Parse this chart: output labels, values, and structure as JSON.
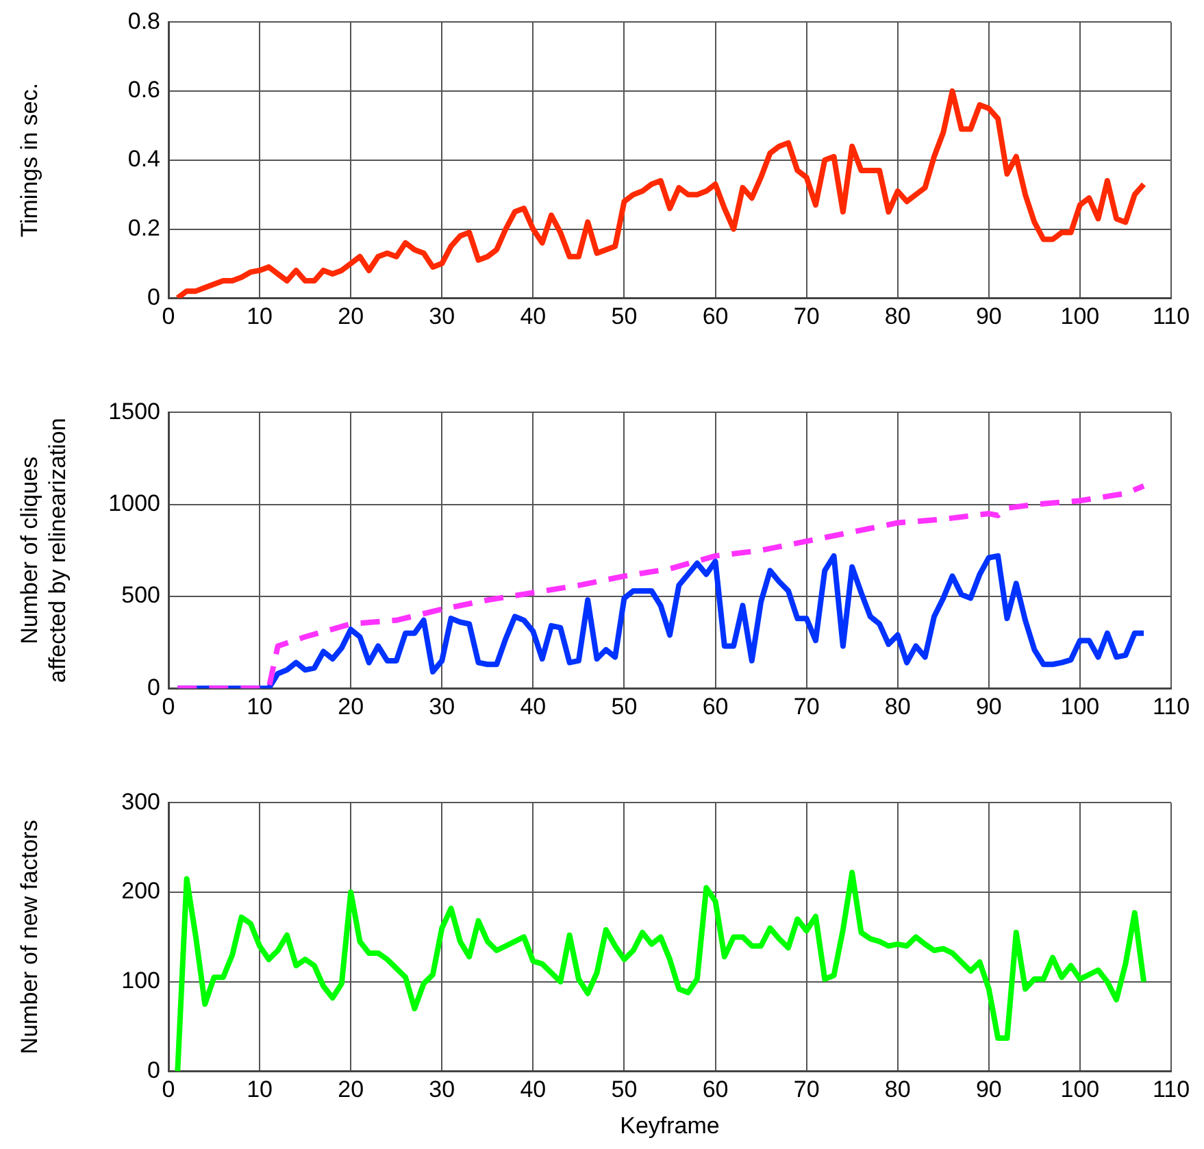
{
  "chart_data": [
    {
      "type": "line",
      "ylabel": "Timings in sec.",
      "xlim": [
        0,
        110
      ],
      "xticks": [
        0,
        10,
        20,
        30,
        40,
        50,
        60,
        70,
        80,
        90,
        100,
        110
      ],
      "ylim": [
        0,
        0.8
      ],
      "yticks": [
        0,
        0.2,
        0.4,
        0.6,
        0.8
      ],
      "grid": true,
      "legend": false,
      "marker": "none",
      "x": [
        1,
        2,
        3,
        4,
        5,
        6,
        7,
        8,
        9,
        10,
        11,
        12,
        13,
        14,
        15,
        16,
        17,
        18,
        19,
        20,
        21,
        22,
        23,
        24,
        25,
        26,
        27,
        28,
        29,
        30,
        31,
        32,
        33,
        34,
        35,
        36,
        37,
        38,
        39,
        40,
        41,
        42,
        43,
        44,
        45,
        46,
        47,
        48,
        49,
        50,
        51,
        52,
        53,
        54,
        55,
        56,
        57,
        58,
        59,
        60,
        61,
        62,
        63,
        64,
        65,
        66,
        67,
        68,
        69,
        70,
        71,
        72,
        73,
        74,
        75,
        76,
        77,
        78,
        79,
        80,
        81,
        82,
        83,
        84,
        85,
        86,
        87,
        88,
        89,
        90,
        91,
        92,
        93,
        94,
        95,
        96,
        97,
        98,
        99,
        100,
        101,
        102,
        103,
        104,
        105,
        106,
        107
      ],
      "series": [
        {
          "color": "#ff2a00",
          "line_style": "solid",
          "values": [
            0,
            0.02,
            0.02,
            0.03,
            0.04,
            0.05,
            0.05,
            0.06,
            0.075,
            0.08,
            0.09,
            0.07,
            0.05,
            0.08,
            0.05,
            0.05,
            0.08,
            0.07,
            0.08,
            0.1,
            0.12,
            0.08,
            0.12,
            0.13,
            0.12,
            0.16,
            0.14,
            0.13,
            0.09,
            0.1,
            0.15,
            0.18,
            0.19,
            0.11,
            0.12,
            0.14,
            0.2,
            0.25,
            0.26,
            0.2,
            0.16,
            0.24,
            0.19,
            0.12,
            0.12,
            0.22,
            0.13,
            0.14,
            0.15,
            0.28,
            0.3,
            0.31,
            0.33,
            0.34,
            0.26,
            0.32,
            0.3,
            0.3,
            0.31,
            0.33,
            0.26,
            0.2,
            0.32,
            0.29,
            0.35,
            0.42,
            0.44,
            0.45,
            0.37,
            0.35,
            0.27,
            0.4,
            0.41,
            0.25,
            0.44,
            0.37,
            0.37,
            0.37,
            0.25,
            0.31,
            0.28,
            0.3,
            0.32,
            0.41,
            0.48,
            0.6,
            0.49,
            0.49,
            0.56,
            0.55,
            0.52,
            0.36,
            0.41,
            0.3,
            0.22,
            0.17,
            0.17,
            0.19,
            0.19,
            0.27,
            0.29,
            0.23,
            0.34,
            0.23,
            0.22,
            0.3,
            0.33
          ]
        }
      ]
    },
    {
      "type": "line",
      "ylabel": "Number of cliques\naffected by relinearization",
      "xlim": [
        0,
        110
      ],
      "xticks": [
        0,
        10,
        20,
        30,
        40,
        50,
        60,
        70,
        80,
        90,
        100,
        110
      ],
      "ylim": [
        0,
        1500
      ],
      "yticks": [
        0,
        500,
        1000,
        1500
      ],
      "grid": true,
      "legend": false,
      "marker": "none",
      "x": [
        1,
        2,
        3,
        4,
        5,
        6,
        7,
        8,
        9,
        10,
        11,
        12,
        13,
        14,
        15,
        16,
        17,
        18,
        19,
        20,
        21,
        22,
        23,
        24,
        25,
        26,
        27,
        28,
        29,
        30,
        31,
        32,
        33,
        34,
        35,
        36,
        37,
        38,
        39,
        40,
        41,
        42,
        43,
        44,
        45,
        46,
        47,
        48,
        49,
        50,
        51,
        52,
        53,
        54,
        55,
        56,
        57,
        58,
        59,
        60,
        61,
        62,
        63,
        64,
        65,
        66,
        67,
        68,
        69,
        70,
        71,
        72,
        73,
        74,
        75,
        76,
        77,
        78,
        79,
        80,
        81,
        82,
        83,
        84,
        85,
        86,
        87,
        88,
        89,
        90,
        91,
        92,
        93,
        94,
        95,
        96,
        97,
        98,
        99,
        100,
        101,
        102,
        103,
        104,
        105,
        106,
        107
      ],
      "series": [
        {
          "color": "#ff33ff",
          "line_style": "dashed",
          "x": [
            1,
            11,
            12,
            15,
            20,
            25,
            30,
            35,
            40,
            45,
            50,
            55,
            60,
            65,
            70,
            75,
            80,
            85,
            90,
            91,
            92,
            95,
            100,
            105,
            107
          ],
          "values": [
            0,
            0,
            230,
            280,
            350,
            370,
            430,
            480,
            520,
            560,
            610,
            650,
            720,
            750,
            800,
            850,
            900,
            920,
            950,
            940,
            980,
            1000,
            1020,
            1060,
            1100
          ]
        },
        {
          "color": "#0033ff",
          "line_style": "solid",
          "values": [
            0,
            0,
            0,
            0,
            0,
            0,
            0,
            0,
            0,
            0,
            0,
            80,
            100,
            140,
            100,
            110,
            200,
            160,
            220,
            320,
            280,
            140,
            230,
            150,
            150,
            300,
            300,
            370,
            90,
            150,
            380,
            360,
            350,
            140,
            130,
            130,
            270,
            390,
            370,
            310,
            160,
            340,
            330,
            140,
            150,
            480,
            160,
            210,
            170,
            490,
            530,
            530,
            530,
            450,
            290,
            560,
            620,
            680,
            620,
            690,
            230,
            230,
            450,
            150,
            470,
            640,
            580,
            530,
            380,
            380,
            260,
            640,
            720,
            230,
            660,
            520,
            390,
            350,
            240,
            290,
            140,
            230,
            170,
            390,
            490,
            610,
            510,
            490,
            620,
            710,
            720,
            380,
            570,
            370,
            210,
            130,
            130,
            140,
            155,
            260,
            260,
            170,
            300,
            170,
            180,
            300,
            300
          ]
        }
      ]
    },
    {
      "type": "line",
      "xlabel": "Keyframe",
      "ylabel": "Number of new factors",
      "xlim": [
        0,
        110
      ],
      "xticks": [
        0,
        10,
        20,
        30,
        40,
        50,
        60,
        70,
        80,
        90,
        100,
        110
      ],
      "ylim": [
        0,
        300
      ],
      "yticks": [
        0,
        100,
        200,
        300
      ],
      "grid": true,
      "legend": false,
      "marker": "none",
      "x": [
        1,
        2,
        3,
        4,
        5,
        6,
        7,
        8,
        9,
        10,
        11,
        12,
        13,
        14,
        15,
        16,
        17,
        18,
        19,
        20,
        21,
        22,
        23,
        24,
        25,
        26,
        27,
        28,
        29,
        30,
        31,
        32,
        33,
        34,
        35,
        36,
        37,
        38,
        39,
        40,
        41,
        42,
        43,
        44,
        45,
        46,
        47,
        48,
        49,
        50,
        51,
        52,
        53,
        54,
        55,
        56,
        57,
        58,
        59,
        60,
        61,
        62,
        63,
        64,
        65,
        66,
        67,
        68,
        69,
        70,
        71,
        72,
        73,
        74,
        75,
        76,
        77,
        78,
        79,
        80,
        81,
        82,
        83,
        84,
        85,
        86,
        87,
        88,
        89,
        90,
        91,
        92,
        93,
        94,
        95,
        96,
        97,
        98,
        99,
        100,
        101,
        102,
        103,
        104,
        105,
        106,
        107
      ],
      "series": [
        {
          "color": "#00ff00",
          "line_style": "solid",
          "values": [
            0,
            215,
            150,
            75,
            105,
            105,
            130,
            172,
            165,
            140,
            125,
            135,
            152,
            118,
            125,
            118,
            95,
            82,
            98,
            200,
            145,
            132,
            132,
            125,
            115,
            105,
            70,
            98,
            108,
            160,
            182,
            145,
            128,
            168,
            145,
            135,
            140,
            145,
            150,
            123,
            120,
            110,
            100,
            152,
            103,
            87,
            110,
            158,
            140,
            125,
            135,
            155,
            142,
            150,
            125,
            92,
            88,
            103,
            205,
            190,
            128,
            150,
            150,
            140,
            140,
            160,
            148,
            138,
            170,
            157,
            173,
            103,
            107,
            158,
            222,
            155,
            148,
            145,
            140,
            142,
            140,
            150,
            142,
            135,
            137,
            132,
            122,
            112,
            122,
            92,
            37,
            37,
            155,
            92,
            103,
            103,
            127,
            105,
            118,
            103,
            108,
            113,
            100,
            80,
            120,
            177,
            100
          ]
        }
      ]
    }
  ]
}
